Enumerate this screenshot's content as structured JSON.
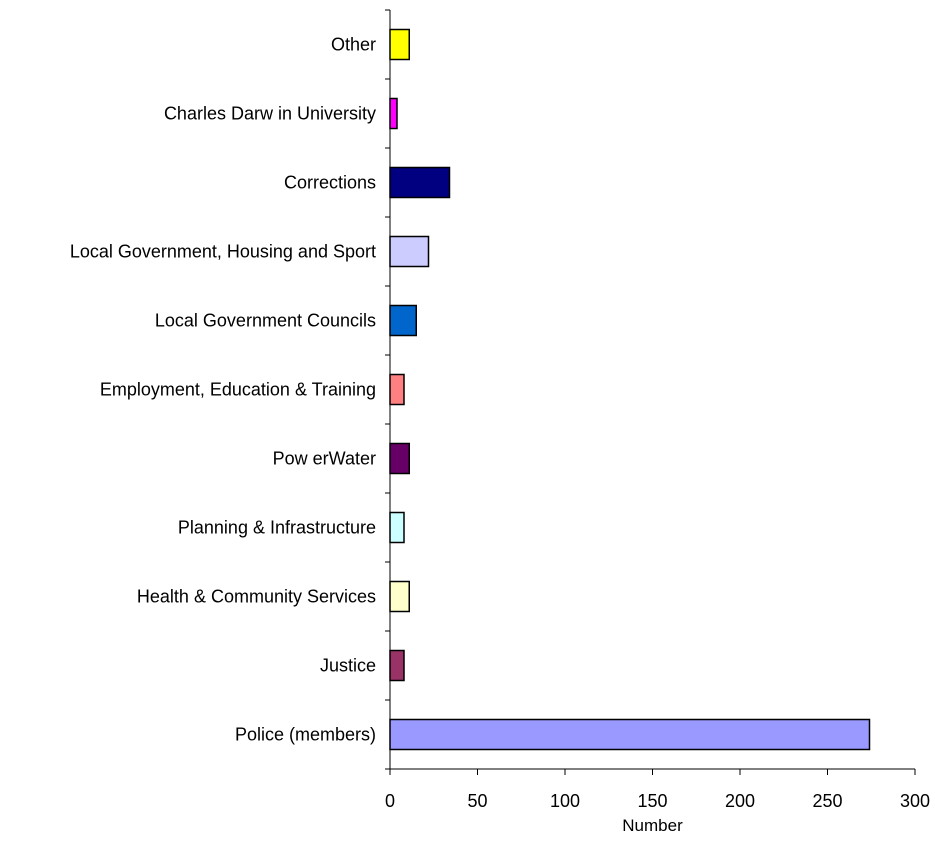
{
  "chart_data": {
    "type": "bar",
    "orientation": "horizontal",
    "categories": [
      "Police (members)",
      "Justice",
      "Health & Community Services",
      "Planning & Infrastructure",
      "Pow erWater",
      "Employment, Education & Training",
      "Local Government Councils",
      "Local Government, Housing and Sport",
      "Corrections",
      "Charles Darw in University",
      "Other"
    ],
    "values": [
      274,
      8,
      11,
      8,
      11,
      8,
      15,
      22,
      34,
      4,
      11
    ],
    "colors": [
      "#9999ff",
      "#993366",
      "#ffffcc",
      "#ccffff",
      "#660066",
      "#ff8080",
      "#0066cc",
      "#ccccff",
      "#000080",
      "#ff00ff",
      "#ffff00"
    ],
    "title": "",
    "xlabel": "Number",
    "ylabel": "",
    "xlim": [
      0,
      300
    ],
    "xticks": [
      "0",
      "50",
      "100",
      "150",
      "200",
      "250",
      "300"
    ],
    "grid": false,
    "legend": false
  }
}
